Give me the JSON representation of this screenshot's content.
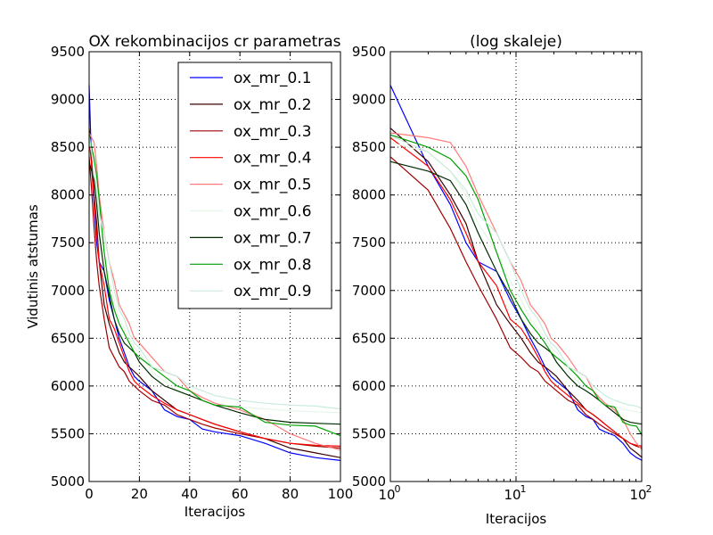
{
  "figure": {
    "background": "#ffffff"
  },
  "chart_data": [
    {
      "type": "line",
      "title": "OX rekombinacijos cr parametras",
      "xlabel": "Iteracijos",
      "ylabel": "Vidutinis atstumas",
      "xlim": [
        0,
        100
      ],
      "ylim": [
        5000,
        9500
      ],
      "xticks": [
        "0",
        "20",
        "40",
        "60",
        "80",
        "100"
      ],
      "yticks": [
        "5000",
        "5500",
        "6000",
        "6500",
        "7000",
        "7500",
        "8000",
        "8500",
        "9000",
        "9500"
      ],
      "grid": true,
      "legend": "top-right",
      "series": [
        {
          "name": "ox_mr_0.1",
          "color": "#0000ff",
          "points": [
            [
              0,
              9150
            ],
            [
              1,
              8300
            ],
            [
              2,
              7900
            ],
            [
              3,
              7500
            ],
            [
              4,
              7300
            ],
            [
              6,
              7200
            ],
            [
              8,
              6900
            ],
            [
              10,
              6700
            ],
            [
              12,
              6500
            ],
            [
              14,
              6350
            ],
            [
              16,
              6200
            ],
            [
              18,
              6100
            ],
            [
              20,
              6050
            ],
            [
              25,
              5950
            ],
            [
              30,
              5750
            ],
            [
              35,
              5680
            ],
            [
              40,
              5650
            ],
            [
              45,
              5550
            ],
            [
              50,
              5520
            ],
            [
              60,
              5480
            ],
            [
              70,
              5400
            ],
            [
              80,
              5300
            ],
            [
              90,
              5250
            ],
            [
              100,
              5220
            ]
          ]
        },
        {
          "name": "ox_mr_0.2",
          "color": "#3d0000",
          "points": [
            [
              0,
              8700
            ],
            [
              1,
              8350
            ],
            [
              2,
              8000
            ],
            [
              3,
              7700
            ],
            [
              4,
              7300
            ],
            [
              6,
              6850
            ],
            [
              8,
              6650
            ],
            [
              10,
              6500
            ],
            [
              12,
              6350
            ],
            [
              14,
              6250
            ],
            [
              16,
              6200
            ],
            [
              18,
              6150
            ],
            [
              20,
              6100
            ],
            [
              25,
              5950
            ],
            [
              30,
              5850
            ],
            [
              35,
              5750
            ],
            [
              40,
              5700
            ],
            [
              45,
              5650
            ],
            [
              50,
              5600
            ],
            [
              60,
              5520
            ],
            [
              70,
              5450
            ],
            [
              80,
              5350
            ],
            [
              90,
              5300
            ],
            [
              100,
              5250
            ]
          ]
        },
        {
          "name": "ox_mr_0.3",
          "color": "#a00000",
          "points": [
            [
              0,
              8400
            ],
            [
              1,
              8050
            ],
            [
              2,
              7650
            ],
            [
              3,
              7300
            ],
            [
              4,
              7050
            ],
            [
              6,
              6700
            ],
            [
              8,
              6400
            ],
            [
              10,
              6300
            ],
            [
              12,
              6200
            ],
            [
              14,
              6150
            ],
            [
              16,
              6050
            ],
            [
              18,
              6000
            ],
            [
              20,
              5950
            ],
            [
              25,
              5850
            ],
            [
              30,
              5800
            ],
            [
              35,
              5700
            ],
            [
              40,
              5650
            ],
            [
              45,
              5600
            ],
            [
              50,
              5560
            ],
            [
              60,
              5500
            ],
            [
              70,
              5450
            ],
            [
              80,
              5400
            ],
            [
              90,
              5370
            ],
            [
              100,
              5350
            ]
          ]
        },
        {
          "name": "ox_mr_0.4",
          "color": "#ff0000",
          "points": [
            [
              0,
              8600
            ],
            [
              1,
              8300
            ],
            [
              2,
              7950
            ],
            [
              3,
              7600
            ],
            [
              4,
              7300
            ],
            [
              6,
              7050
            ],
            [
              8,
              6700
            ],
            [
              10,
              6600
            ],
            [
              12,
              6450
            ],
            [
              14,
              6300
            ],
            [
              16,
              6150
            ],
            [
              18,
              6050
            ],
            [
              20,
              6000
            ],
            [
              25,
              5900
            ],
            [
              30,
              5820
            ],
            [
              35,
              5750
            ],
            [
              40,
              5700
            ],
            [
              45,
              5650
            ],
            [
              50,
              5600
            ],
            [
              60,
              5520
            ],
            [
              70,
              5450
            ],
            [
              80,
              5400
            ],
            [
              90,
              5380
            ],
            [
              100,
              5370
            ]
          ]
        },
        {
          "name": "ox_mr_0.5",
          "color": "#ff7b7b",
          "points": [
            [
              0,
              8650
            ],
            [
              1,
              8600
            ],
            [
              2,
              8550
            ],
            [
              3,
              8300
            ],
            [
              4,
              8000
            ],
            [
              6,
              7600
            ],
            [
              8,
              7300
            ],
            [
              10,
              7100
            ],
            [
              12,
              6850
            ],
            [
              14,
              6750
            ],
            [
              16,
              6650
            ],
            [
              18,
              6500
            ],
            [
              20,
              6450
            ],
            [
              25,
              6300
            ],
            [
              30,
              6150
            ],
            [
              35,
              6100
            ],
            [
              40,
              5950
            ],
            [
              45,
              5880
            ],
            [
              50,
              5820
            ],
            [
              60,
              5750
            ],
            [
              70,
              5650
            ],
            [
              80,
              5500
            ],
            [
              90,
              5400
            ],
            [
              100,
              5330
            ]
          ]
        },
        {
          "name": "ox_mr_0.6",
          "color": "#e6f5e8",
          "points": [
            [
              0,
              8550
            ],
            [
              1,
              8450
            ],
            [
              2,
              8250
            ],
            [
              3,
              8000
            ],
            [
              4,
              7700
            ],
            [
              6,
              7400
            ],
            [
              8,
              7100
            ],
            [
              10,
              6900
            ],
            [
              12,
              6700
            ],
            [
              14,
              6600
            ],
            [
              16,
              6500
            ],
            [
              18,
              6400
            ],
            [
              20,
              6350
            ],
            [
              25,
              6150
            ],
            [
              30,
              6050
            ],
            [
              35,
              5950
            ],
            [
              40,
              5900
            ],
            [
              45,
              5850
            ],
            [
              50,
              5800
            ],
            [
              60,
              5780
            ],
            [
              70,
              5760
            ],
            [
              80,
              5740
            ],
            [
              90,
              5730
            ],
            [
              100,
              5720
            ]
          ]
        },
        {
          "name": "ox_mr_0.7",
          "color": "#002a00",
          "points": [
            [
              0,
              8350
            ],
            [
              1,
              8250
            ],
            [
              2,
              8150
            ],
            [
              3,
              7900
            ],
            [
              4,
              7600
            ],
            [
              6,
              7200
            ],
            [
              8,
              6950
            ],
            [
              10,
              6700
            ],
            [
              12,
              6550
            ],
            [
              14,
              6450
            ],
            [
              16,
              6400
            ],
            [
              18,
              6350
            ],
            [
              20,
              6250
            ],
            [
              25,
              6100
            ],
            [
              30,
              6000
            ],
            [
              35,
              5950
            ],
            [
              40,
              5900
            ],
            [
              45,
              5850
            ],
            [
              50,
              5800
            ],
            [
              60,
              5720
            ],
            [
              70,
              5650
            ],
            [
              80,
              5620
            ],
            [
              90,
              5610
            ],
            [
              100,
              5600
            ]
          ]
        },
        {
          "name": "ox_mr_0.8",
          "color": "#00a000",
          "points": [
            [
              0,
              8630
            ],
            [
              1,
              8500
            ],
            [
              2,
              8380
            ],
            [
              3,
              8200
            ],
            [
              4,
              7950
            ],
            [
              6,
              7400
            ],
            [
              8,
              7000
            ],
            [
              10,
              6800
            ],
            [
              12,
              6650
            ],
            [
              14,
              6550
            ],
            [
              16,
              6450
            ],
            [
              18,
              6350
            ],
            [
              20,
              6300
            ],
            [
              25,
              6200
            ],
            [
              30,
              6100
            ],
            [
              35,
              6000
            ],
            [
              40,
              5950
            ],
            [
              45,
              5850
            ],
            [
              50,
              5800
            ],
            [
              60,
              5780
            ],
            [
              70,
              5620
            ],
            [
              80,
              5590
            ],
            [
              90,
              5580
            ],
            [
              100,
              5480
            ]
          ]
        },
        {
          "name": "ox_mr_0.9",
          "color": "#c8ecdc",
          "points": [
            [
              0,
              8620
            ],
            [
              1,
              8450
            ],
            [
              2,
              8250
            ],
            [
              3,
              8050
            ],
            [
              4,
              7800
            ],
            [
              6,
              7600
            ],
            [
              8,
              7300
            ],
            [
              10,
              7000
            ],
            [
              12,
              6800
            ],
            [
              14,
              6700
            ],
            [
              16,
              6550
            ],
            [
              18,
              6450
            ],
            [
              20,
              6400
            ],
            [
              25,
              6200
            ],
            [
              30,
              6150
            ],
            [
              35,
              6100
            ],
            [
              40,
              6000
            ],
            [
              45,
              5950
            ],
            [
              50,
              5900
            ],
            [
              60,
              5850
            ],
            [
              70,
              5820
            ],
            [
              80,
              5800
            ],
            [
              90,
              5790
            ],
            [
              100,
              5760
            ]
          ]
        }
      ]
    },
    {
      "type": "line",
      "title": "(log skaleje)",
      "xlabel": "Iteracijos",
      "ylabel": "",
      "xscale": "log",
      "xlim": [
        1,
        100
      ],
      "ylim": [
        5000,
        9500
      ],
      "xticks": [
        {
          "base": "10",
          "exp": "0"
        },
        {
          "base": "10",
          "exp": "1"
        },
        {
          "base": "10",
          "exp": "2"
        }
      ],
      "yticks": [
        "5000",
        "5500",
        "6000",
        "6500",
        "7000",
        "7500",
        "8000",
        "8500",
        "9000",
        "9500"
      ],
      "grid": true,
      "legend": "none",
      "series_source": 0
    }
  ]
}
